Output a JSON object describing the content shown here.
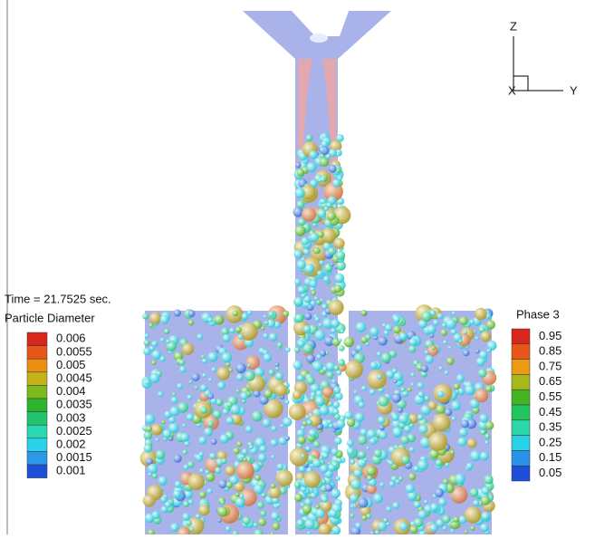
{
  "time_label": "Time = 21.7525 sec.",
  "diameter_legend": {
    "title": "Particle Diameter",
    "entries": [
      {
        "label": "0.006",
        "color": "#d8261c"
      },
      {
        "label": "0.0055",
        "color": "#e8561a"
      },
      {
        "label": "0.005",
        "color": "#eb8f12"
      },
      {
        "label": "0.0045",
        "color": "#c4b218"
      },
      {
        "label": "0.004",
        "color": "#7cba1e"
      },
      {
        "label": "0.0035",
        "color": "#2cb42c"
      },
      {
        "label": "0.003",
        "color": "#22c46e"
      },
      {
        "label": "0.0025",
        "color": "#2ad8b2"
      },
      {
        "label": "0.002",
        "color": "#2ad2e8"
      },
      {
        "label": "0.0015",
        "color": "#2a9ae8"
      },
      {
        "label": "0.001",
        "color": "#1f4fd8"
      }
    ]
  },
  "phase_legend": {
    "title": "Phase 3",
    "entries": [
      {
        "label": "0.95",
        "color": "#d8261c"
      },
      {
        "label": "0.85",
        "color": "#e8561a"
      },
      {
        "label": "0.75",
        "color": "#eb9a12"
      },
      {
        "label": "0.65",
        "color": "#a6b81c"
      },
      {
        "label": "0.55",
        "color": "#44b422"
      },
      {
        "label": "0.45",
        "color": "#22c45e"
      },
      {
        "label": "0.35",
        "color": "#2ad6aa"
      },
      {
        "label": "0.25",
        "color": "#2ad2e8"
      },
      {
        "label": "0.15",
        "color": "#2a92e8"
      },
      {
        "label": "0.05",
        "color": "#1f4fd8"
      }
    ]
  },
  "axes": {
    "z": "Z",
    "y": "Y",
    "x": "X"
  }
}
